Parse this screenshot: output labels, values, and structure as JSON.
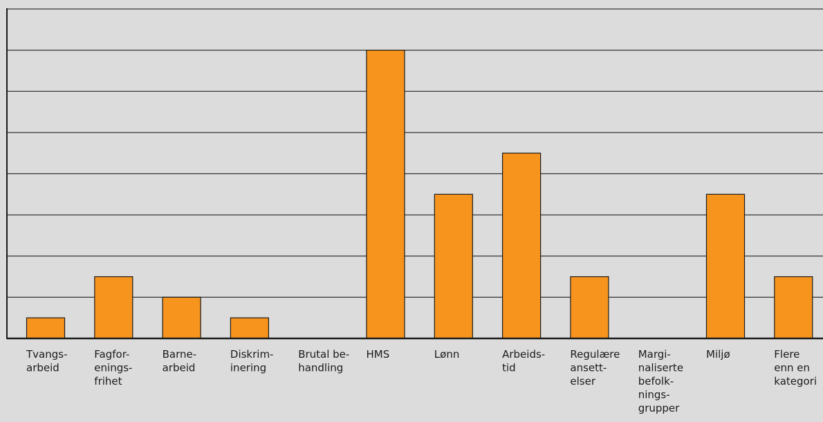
{
  "chart_data": {
    "type": "bar",
    "title": "",
    "xlabel": "",
    "ylabel": "",
    "ylim": [
      0,
      8
    ],
    "grid": true,
    "legend": "none",
    "categories": [
      [
        "Tvangs-",
        "arbeid"
      ],
      [
        "Fagfor-",
        "enings-",
        "frihet"
      ],
      [
        "Barne-",
        "arbeid"
      ],
      [
        "Diskrim-",
        "inering"
      ],
      [
        "Brutal be-",
        "handling"
      ],
      [
        "HMS"
      ],
      [
        "Lønn"
      ],
      [
        "Arbeids-",
        "tid"
      ],
      [
        "Regulære",
        "ansett-",
        "elser"
      ],
      [
        "Margi-",
        "naliserte",
        "befolk-",
        "nings-",
        "grupper"
      ],
      [
        "Miljø"
      ],
      [
        "Flere",
        "enn en",
        "kategori"
      ]
    ],
    "values": [
      0.5,
      1.5,
      1,
      0.5,
      0,
      7,
      3.5,
      4.5,
      1.5,
      0,
      3.5,
      1.5
    ],
    "colors": {
      "bar": "#f7941d",
      "bar_stroke": "#1a1a1a",
      "grid": "#333333",
      "background": "#dcdcdc"
    }
  }
}
